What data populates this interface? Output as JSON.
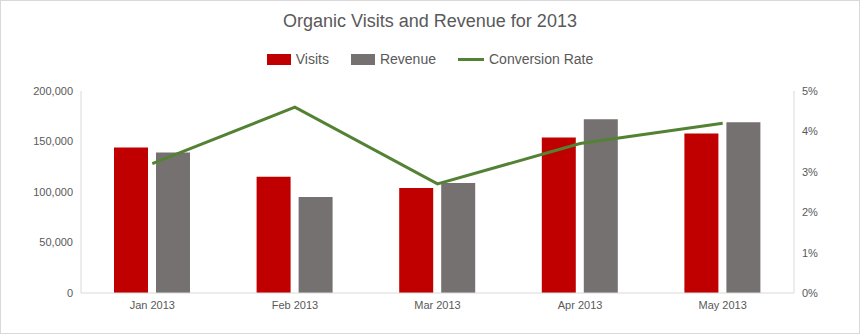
{
  "chart_data": {
    "type": "bar",
    "title": "Organic Visits and Revenue for 2013",
    "categories": [
      "Jan 2013",
      "Feb 2013",
      "Mar 2013",
      "Apr 2013",
      "May 2013"
    ],
    "series": [
      {
        "name": "Visits",
        "type": "bar",
        "color": "#c00000",
        "values": [
          144000,
          115000,
          104000,
          154000,
          158000
        ]
      },
      {
        "name": "Revenue",
        "type": "bar",
        "color": "#767171",
        "values": [
          139000,
          95000,
          109000,
          172000,
          169000
        ]
      },
      {
        "name": "Conversion Rate",
        "type": "line",
        "color": "#548235",
        "axis": "y2",
        "values": [
          3.2,
          4.6,
          2.7,
          3.7,
          4.2
        ]
      }
    ],
    "ylim": [
      0,
      200000
    ],
    "yticks": [
      0,
      {
        "value": 50000,
        "label": "50,000"
      },
      {
        "value": 100000,
        "label": "100,000"
      },
      {
        "value": 150000,
        "label": "150,000"
      },
      {
        "value": 200000,
        "label": "200,000"
      }
    ],
    "y2lim": [
      0,
      5
    ],
    "y2ticks": [
      {
        "value": 0,
        "label": "0%"
      },
      {
        "value": 1,
        "label": "1%"
      },
      {
        "value": 2,
        "label": "2%"
      },
      {
        "value": 3,
        "label": "3%"
      },
      {
        "value": 4,
        "label": "4%"
      },
      {
        "value": 5,
        "label": "5%"
      }
    ],
    "grid": false,
    "legend": "top"
  }
}
